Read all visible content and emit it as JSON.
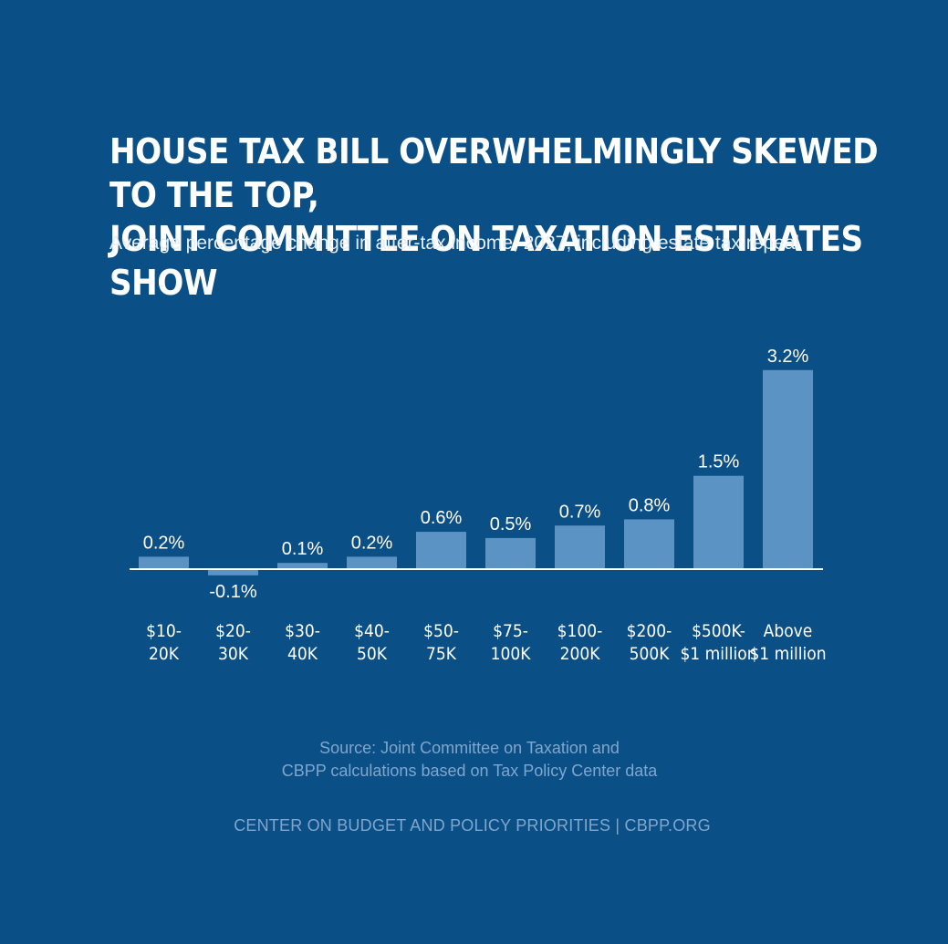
{
  "header": {
    "title_line1": "House Tax Bill Overwhelmingly Skewed to the Top,",
    "title_line2": "Joint Committee on Taxation Estimates Show",
    "subtitle": "Average percentage change in after-tax income, 2027, including estate tax repeal"
  },
  "chart_data": {
    "type": "bar",
    "title": "House Tax Bill Overwhelmingly Skewed to the Top, Joint Committee on Taxation Estimates Show",
    "subtitle": "Average percentage change in after-tax income, 2027, including estate tax repeal",
    "categories": [
      [
        "$10-",
        "20K"
      ],
      [
        "$20-",
        "30K"
      ],
      [
        "$30-",
        "40K"
      ],
      [
        "$40-",
        "50K"
      ],
      [
        "$50-",
        "75K"
      ],
      [
        "$75-",
        "100K"
      ],
      [
        "$100-",
        "200K"
      ],
      [
        "$200-",
        "500K"
      ],
      [
        "$500K-",
        "$1 million"
      ],
      [
        "Above",
        "$1 million"
      ]
    ],
    "values": [
      0.2,
      -0.1,
      0.1,
      0.2,
      0.6,
      0.5,
      0.7,
      0.8,
      1.5,
      3.2
    ],
    "data_labels": [
      "0.2%",
      "-0.1%",
      "0.1%",
      "0.2%",
      "0.6%",
      "0.5%",
      "0.7%",
      "0.8%",
      "1.5%",
      "3.2%"
    ],
    "ylim": [
      -0.1,
      3.2
    ],
    "grid": false,
    "legend": "none",
    "colors": {
      "background": "#0b4f87",
      "bar": "#5b93c4",
      "baseline": "#ffffff",
      "text": "#ffffff",
      "muted_text": "#7fa6cc"
    }
  },
  "footer": {
    "source_line1": "Source: Joint Committee on Taxation and",
    "source_line2": "CBPP calculations based on Tax Policy Center data",
    "credit": "CENTER ON BUDGET AND POLICY PRIORITIES | CBPP.ORG"
  }
}
